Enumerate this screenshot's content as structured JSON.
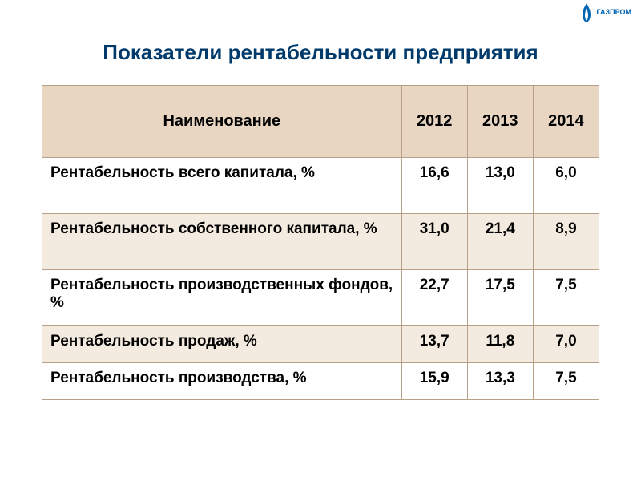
{
  "logo": {
    "company": "ГАЗПРОМ",
    "flame_color": "#0066b3"
  },
  "title": "Показатели рентабельности предприятия",
  "table": {
    "header_bg": "#e8d6c3",
    "stripe_bg": "#f4ebe0",
    "border_color": "#b8a088",
    "text_color": "#000000",
    "columns": [
      "Наименование",
      "2012",
      "2013",
      "2014"
    ],
    "rows": [
      {
        "label": "Рентабельность всего капитала, %",
        "values": [
          "16,6",
          "13,0",
          "6,0"
        ],
        "striped": false,
        "short": false
      },
      {
        "label": "Рентабельность собственного капитала, %",
        "values": [
          "31,0",
          "21,4",
          "8,9"
        ],
        "striped": true,
        "short": false
      },
      {
        "label": "Рентабельность производственных фондов, %",
        "values": [
          "22,7",
          "17,5",
          "7,5"
        ],
        "striped": false,
        "short": false
      },
      {
        "label": "Рентабельность продаж, %",
        "values": [
          "13,7",
          "11,8",
          "7,0"
        ],
        "striped": true,
        "short": true
      },
      {
        "label": "Рентабельность производства, %",
        "values": [
          "15,9",
          "13,3",
          "7,5"
        ],
        "striped": false,
        "short": true
      }
    ]
  }
}
